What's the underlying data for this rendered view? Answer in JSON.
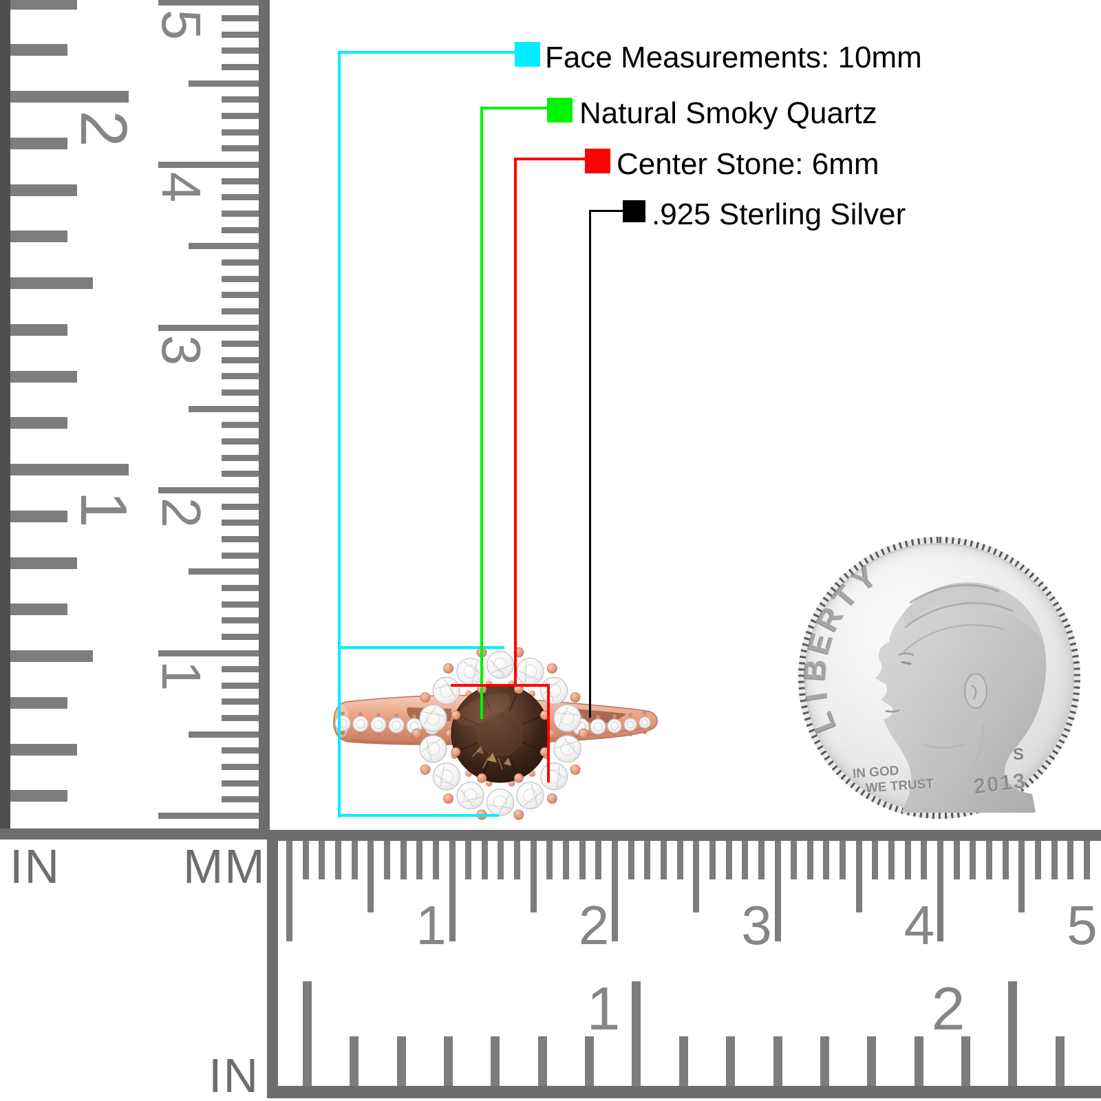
{
  "legend": {
    "items": [
      {
        "label": "Face Measurements: 10mm",
        "color": "#00eeff"
      },
      {
        "label": "Natural Smoky Quartz",
        "color": "#00f400"
      },
      {
        "label": "Center Stone: 6mm",
        "color": "#ff0000"
      },
      {
        "label": ".925 Sterling Silver",
        "color": "#000000"
      }
    ]
  },
  "rulers": {
    "vertical_inch": {
      "unit_label": "IN",
      "numbers": [
        "2",
        "1"
      ]
    },
    "vertical_cm": {
      "unit_label": "MM",
      "numbers": [
        "5",
        "4",
        "3",
        "2",
        "1"
      ]
    },
    "bottom_cm": {
      "numbers": [
        "1",
        "2",
        "3",
        "4",
        "5"
      ]
    },
    "bottom_inch": {
      "unit_label": "IN",
      "numbers": [
        "1",
        "2"
      ]
    }
  },
  "coin": {
    "legend_text": "LIBERTY",
    "motto_line1": "IN GOD",
    "motto_line2": "WE TRUST",
    "year": "2013",
    "mint_mark": "S"
  },
  "colors": {
    "annotation_cyan": "#00eeff",
    "annotation_green": "#00f400",
    "annotation_red": "#ff0000",
    "annotation_black": "#000000",
    "ruler_tick_gray": "#7d7d7d",
    "rose_gold": "#e2a088",
    "stone_brown": "#3a2317"
  }
}
